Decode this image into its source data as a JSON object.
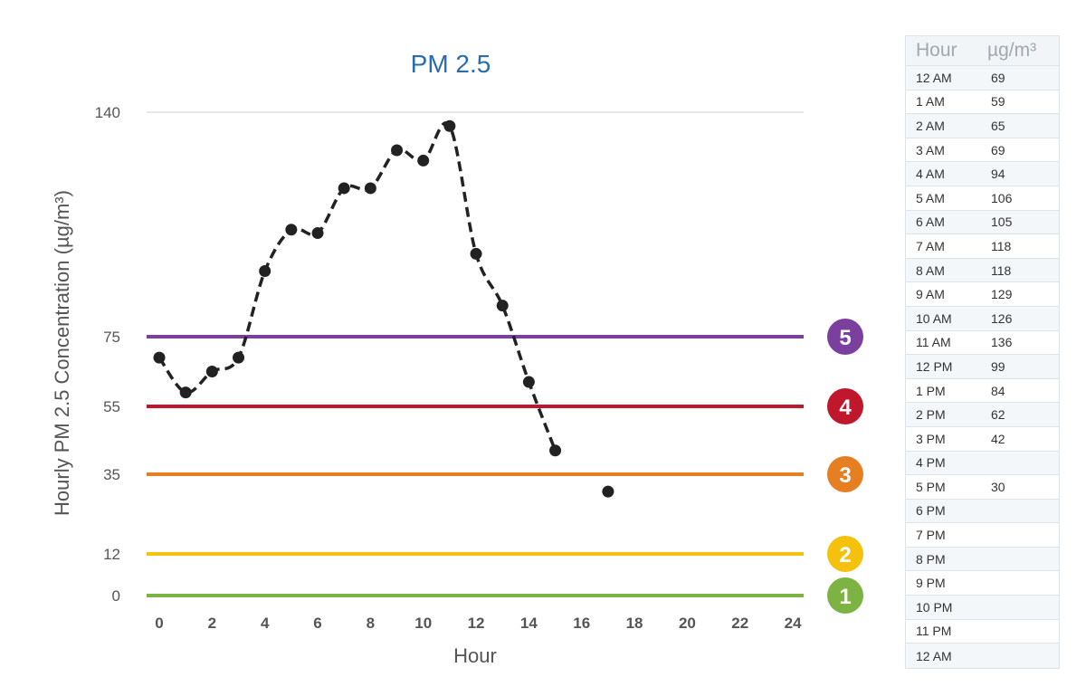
{
  "chart_data": {
    "type": "line",
    "title": "PM 2.5",
    "xlabel": "Hour",
    "ylabel": "Hourly PM 2.5 Concentration (µg/m³)",
    "xlim": [
      -0.5,
      24.5
    ],
    "x_ticks": [
      0,
      2,
      4,
      6,
      8,
      10,
      12,
      14,
      16,
      18,
      20,
      22,
      24
    ],
    "y_ticks": [
      0,
      12,
      35,
      55,
      75,
      140
    ],
    "series": [
      {
        "x": [
          0,
          1,
          2,
          3,
          4,
          5,
          6,
          7,
          8,
          9,
          10,
          11,
          12,
          13,
          14,
          15,
          17
        ],
        "values": [
          69,
          59,
          65,
          69,
          94,
          106,
          105,
          118,
          118,
          129,
          126,
          136,
          99,
          84,
          62,
          42,
          30
        ],
        "style": "dashed",
        "color": "#222222"
      }
    ],
    "thresholds": [
      {
        "value": 0,
        "label": "1",
        "color": "#7cb342"
      },
      {
        "value": 12,
        "label": "2",
        "color": "#f4c20d"
      },
      {
        "value": 35,
        "label": "3",
        "color": "#e67e22"
      },
      {
        "value": 55,
        "label": "4",
        "color": "#c0172d"
      },
      {
        "value": 75,
        "label": "5",
        "color": "#7b3f9e"
      }
    ],
    "grid": "horizontal-top-only"
  },
  "table": {
    "header_hour": "Hour",
    "header_unit": "µg/m³",
    "rows": [
      {
        "hour": "12 AM",
        "value": "69"
      },
      {
        "hour": "1 AM",
        "value": "59"
      },
      {
        "hour": "2 AM",
        "value": "65"
      },
      {
        "hour": "3 AM",
        "value": "69"
      },
      {
        "hour": "4 AM",
        "value": "94"
      },
      {
        "hour": "5 AM",
        "value": "106"
      },
      {
        "hour": "6 AM",
        "value": "105"
      },
      {
        "hour": "7 AM",
        "value": "118"
      },
      {
        "hour": "8 AM",
        "value": "118"
      },
      {
        "hour": "9 AM",
        "value": "129"
      },
      {
        "hour": "10 AM",
        "value": "126"
      },
      {
        "hour": "11 AM",
        "value": "136"
      },
      {
        "hour": "12 PM",
        "value": "99"
      },
      {
        "hour": "1 PM",
        "value": "84"
      },
      {
        "hour": "2 PM",
        "value": "62"
      },
      {
        "hour": "3 PM",
        "value": "42"
      },
      {
        "hour": "4 PM",
        "value": ""
      },
      {
        "hour": "5 PM",
        "value": "30"
      },
      {
        "hour": "6 PM",
        "value": ""
      },
      {
        "hour": "7 PM",
        "value": ""
      },
      {
        "hour": "8 PM",
        "value": ""
      },
      {
        "hour": "9 PM",
        "value": ""
      },
      {
        "hour": "10 PM",
        "value": ""
      },
      {
        "hour": "11 PM",
        "value": ""
      },
      {
        "hour": "12 AM",
        "value": ""
      }
    ]
  }
}
